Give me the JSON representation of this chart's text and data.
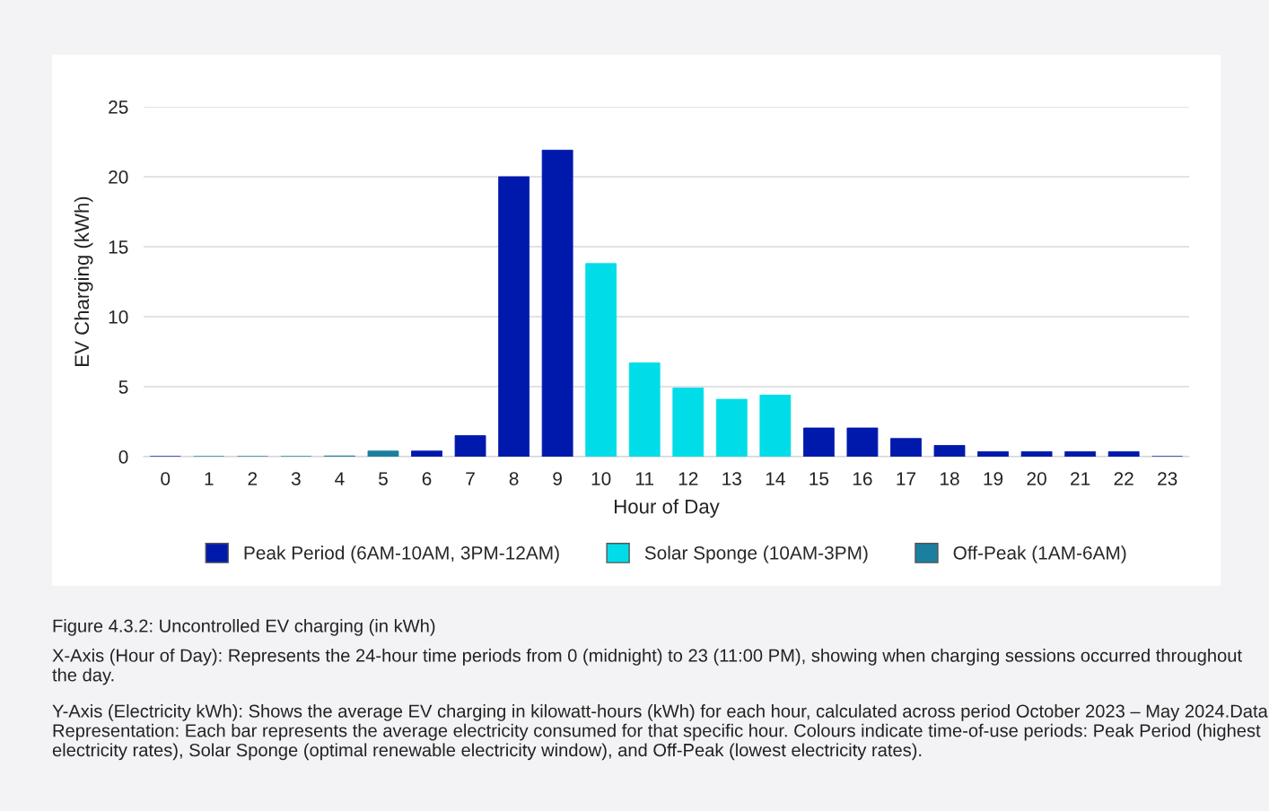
{
  "chart_data": {
    "type": "bar",
    "stacked": true,
    "xlabel": "Hour of Day",
    "ylabel": "EV Charging (kWh)",
    "categories": [
      "0",
      "1",
      "2",
      "3",
      "4",
      "5",
      "6",
      "7",
      "8",
      "9",
      "10",
      "11",
      "12",
      "13",
      "14",
      "15",
      "16",
      "17",
      "18",
      "19",
      "20",
      "21",
      "22",
      "23"
    ],
    "series": [
      {
        "name": "Peak Period (6AM-10AM, 3PM-12AM)",
        "color": "#0019ad",
        "values": [
          0,
          null,
          null,
          null,
          null,
          null,
          0.4,
          1.5,
          20,
          21.9,
          null,
          null,
          null,
          null,
          null,
          2.05,
          2.05,
          1.3,
          0.8,
          0.35,
          0.35,
          0.35,
          0.35,
          0
        ]
      },
      {
        "name": "Solar Sponge (10AM-3PM)",
        "color": "#00dde8",
        "values": [
          null,
          null,
          null,
          null,
          null,
          null,
          null,
          null,
          null,
          null,
          13.8,
          6.7,
          4.9,
          4.1,
          4.4,
          null,
          null,
          null,
          null,
          null,
          null,
          null,
          null,
          null
        ]
      },
      {
        "name": "Off-Peak (1AM-6AM)",
        "color": "#1b7fa0",
        "values": [
          null,
          0,
          0,
          0,
          0.05,
          0.4,
          null,
          null,
          null,
          null,
          null,
          null,
          null,
          null,
          null,
          null,
          null,
          null,
          null,
          null,
          null,
          null,
          null,
          null
        ]
      }
    ],
    "ylim": [
      0,
      25
    ],
    "yticks": [
      0,
      5,
      10,
      15,
      20,
      25
    ],
    "grid": "y",
    "legend": "bottom",
    "annotations": [
      "Figure 4.3.2: Uncontrolled EV charging (in kWh)",
      "X-Axis (Hour of Day): Represents the 24-hour time periods from 0 (midnight) to 23 (11:00 PM), showing when charging sessions occurred throughout the day.",
      "Y-Axis (Electricity kWh): Shows the average EV charging in kilowatt-hours (kWh) for each hour, calculated across period October 2023 – May 2024.Data Representation: Each bar represents the average electricity consumed for that specific hour. Colours indicate time-of-use periods: Peak Period (highest electricity rates), Solar Sponge (optimal renewable electricity window), and Off-Peak (lowest electricity rates)."
    ]
  }
}
